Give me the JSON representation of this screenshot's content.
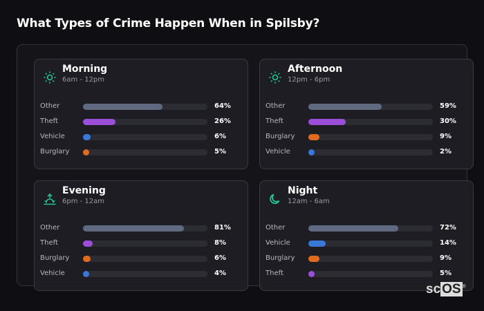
{
  "title": "What Types of Crime Happen When in Spilsby?",
  "colors": {
    "Other": "#5f6a80",
    "Theft": "#9b4fd8",
    "Vehicle": "#3a78d8",
    "Burglary": "#e06a1e",
    "accent": "#22c59a"
  },
  "cards": [
    {
      "name": "Morning",
      "time": "6am - 12pm",
      "icon": "sun-icon",
      "rows": [
        {
          "label": "Other",
          "value": 64,
          "text": "64%"
        },
        {
          "label": "Theft",
          "value": 26,
          "text": "26%"
        },
        {
          "label": "Vehicle",
          "value": 6,
          "text": "6%"
        },
        {
          "label": "Burglary",
          "value": 5,
          "text": "5%"
        }
      ]
    },
    {
      "name": "Afternoon",
      "time": "12pm - 6pm",
      "icon": "sun-icon",
      "rows": [
        {
          "label": "Other",
          "value": 59,
          "text": "59%"
        },
        {
          "label": "Theft",
          "value": 30,
          "text": "30%"
        },
        {
          "label": "Burglary",
          "value": 9,
          "text": "9%"
        },
        {
          "label": "Vehicle",
          "value": 2,
          "text": "2%"
        }
      ]
    },
    {
      "name": "Evening",
      "time": "6pm - 12am",
      "icon": "sunset-icon",
      "rows": [
        {
          "label": "Other",
          "value": 81,
          "text": "81%"
        },
        {
          "label": "Theft",
          "value": 8,
          "text": "8%"
        },
        {
          "label": "Burglary",
          "value": 6,
          "text": "6%"
        },
        {
          "label": "Vehicle",
          "value": 4,
          "text": "4%"
        }
      ]
    },
    {
      "name": "Night",
      "time": "12am - 6am",
      "icon": "moon-icon",
      "rows": [
        {
          "label": "Other",
          "value": 72,
          "text": "72%"
        },
        {
          "label": "Vehicle",
          "value": 14,
          "text": "14%"
        },
        {
          "label": "Burglary",
          "value": 9,
          "text": "9%"
        },
        {
          "label": "Theft",
          "value": 5,
          "text": "5%"
        }
      ]
    }
  ],
  "logo": {
    "text": "scOS"
  }
}
